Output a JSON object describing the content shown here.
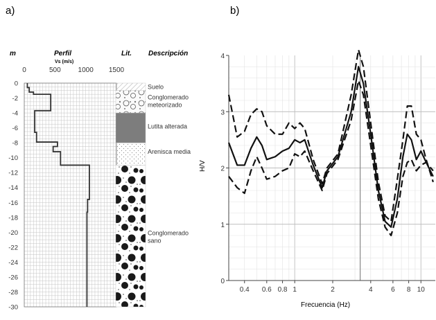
{
  "panels": {
    "a": "a)",
    "b": "b)"
  },
  "headers": {
    "depth": "m",
    "profile": "Perfil",
    "vs": "Vs (m/s)",
    "lith": "Lit.",
    "desc": "Descripción"
  },
  "descriptions": [
    {
      "lines": [
        "Suelo"
      ],
      "depth": 0.5
    },
    {
      "lines": [
        "Conglomerado",
        "meteorizado"
      ],
      "depth": 2.4
    },
    {
      "lines": [
        "Lutita alterada"
      ],
      "depth": 5.8
    },
    {
      "lines": [
        "Arenisca media"
      ],
      "depth": 9.2
    },
    {
      "lines": [
        "Conglomerado",
        "sano"
      ],
      "depth": 20.6
    }
  ],
  "lithology": [
    {
      "top": 0,
      "bottom": 1,
      "pattern": "hatch"
    },
    {
      "top": 1,
      "bottom": 4,
      "pattern": "gravel"
    },
    {
      "top": 4,
      "bottom": 8,
      "pattern": "gray"
    },
    {
      "top": 8,
      "bottom": 11,
      "pattern": "dots"
    },
    {
      "top": 11,
      "bottom": 30,
      "pattern": "conglomerate"
    }
  ],
  "chart_data": [
    {
      "type": "line",
      "xlabel": "Vs (m/s)",
      "ylabel": "m",
      "xlim": [
        0,
        1500
      ],
      "ylim": [
        0,
        -30
      ],
      "xticks": [
        0,
        500,
        1000,
        1500
      ],
      "yticks": [
        0,
        -2,
        -4,
        -6,
        -8,
        -10,
        -12,
        -14,
        -16,
        -18,
        -20,
        -22,
        -24,
        -26,
        -28,
        -30
      ],
      "grid": true,
      "series": [
        {
          "points": [
            [
              50,
              0
            ],
            [
              50,
              -0.6
            ],
            [
              80,
              -0.6
            ],
            [
              80,
              -1.2
            ],
            [
              150,
              -1.2
            ],
            [
              150,
              -1.5
            ],
            [
              430,
              -1.5
            ],
            [
              430,
              -3.7
            ],
            [
              170,
              -3.7
            ],
            [
              170,
              -6.6
            ],
            [
              200,
              -6.6
            ],
            [
              200,
              -7.9
            ],
            [
              540,
              -7.9
            ],
            [
              540,
              -8.5
            ],
            [
              470,
              -8.5
            ],
            [
              470,
              -9.2
            ],
            [
              590,
              -9.2
            ],
            [
              590,
              -11
            ],
            [
              1060,
              -11
            ],
            [
              1060,
              -15.6
            ],
            [
              1030,
              -15.6
            ],
            [
              1030,
              -17.3
            ],
            [
              1020,
              -17.3
            ],
            [
              1020,
              -30
            ]
          ]
        }
      ]
    },
    {
      "type": "line",
      "xlabel": "Frecuencia (Hz)",
      "ylabel": "H/V",
      "xscale": "log",
      "xlim": [
        0.3,
        13
      ],
      "ylim": [
        0,
        4
      ],
      "xtick_labels": [
        {
          "v": 0.4,
          "label": "0.4"
        },
        {
          "v": 0.6,
          "label": "0.6"
        },
        {
          "v": 0.8,
          "label": "0.8"
        },
        {
          "v": 1,
          "label": "1"
        },
        {
          "v": 2,
          "label": "2"
        },
        {
          "v": 4,
          "label": "4"
        },
        {
          "v": 6,
          "label": "6"
        },
        {
          "v": 8,
          "label": "8"
        },
        {
          "v": 10,
          "label": "10"
        }
      ],
      "yticks": [
        0,
        1,
        2,
        3,
        4
      ],
      "grid": true,
      "vline": 3.3,
      "series": [
        {
          "style": "solid",
          "points": [
            [
              0.3,
              2.45
            ],
            [
              0.35,
              2.05
            ],
            [
              0.4,
              2.05
            ],
            [
              0.45,
              2.35
            ],
            [
              0.5,
              2.55
            ],
            [
              0.55,
              2.4
            ],
            [
              0.6,
              2.15
            ],
            [
              0.7,
              2.2
            ],
            [
              0.8,
              2.3
            ],
            [
              0.9,
              2.35
            ],
            [
              1.0,
              2.5
            ],
            [
              1.1,
              2.45
            ],
            [
              1.2,
              2.5
            ],
            [
              1.4,
              2.05
            ],
            [
              1.65,
              1.65
            ],
            [
              1.8,
              1.95
            ],
            [
              2.2,
              2.2
            ],
            [
              2.8,
              3.0
            ],
            [
              3.2,
              3.8
            ],
            [
              3.5,
              3.5
            ],
            [
              4.0,
              2.6
            ],
            [
              4.6,
              1.6
            ],
            [
              5.2,
              1.05
            ],
            [
              5.8,
              0.95
            ],
            [
              6.5,
              1.45
            ],
            [
              7.2,
              2.2
            ],
            [
              7.8,
              2.6
            ],
            [
              8.4,
              2.5
            ],
            [
              9.2,
              2.15
            ],
            [
              10,
              2.3
            ],
            [
              11,
              2.1
            ],
            [
              12.5,
              1.85
            ]
          ]
        },
        {
          "style": "dashed",
          "points": [
            [
              0.3,
              3.3
            ],
            [
              0.35,
              2.55
            ],
            [
              0.4,
              2.65
            ],
            [
              0.45,
              2.95
            ],
            [
              0.5,
              3.05
            ],
            [
              0.55,
              3.0
            ],
            [
              0.6,
              2.75
            ],
            [
              0.7,
              2.6
            ],
            [
              0.8,
              2.6
            ],
            [
              0.9,
              2.8
            ],
            [
              1.0,
              2.7
            ],
            [
              1.1,
              2.8
            ],
            [
              1.2,
              2.7
            ],
            [
              1.4,
              2.15
            ],
            [
              1.65,
              1.72
            ],
            [
              1.8,
              2.0
            ],
            [
              2.2,
              2.25
            ],
            [
              2.8,
              3.3
            ],
            [
              3.2,
              4.1
            ],
            [
              3.5,
              3.8
            ],
            [
              4.0,
              2.8
            ],
            [
              4.6,
              1.75
            ],
            [
              5.2,
              1.15
            ],
            [
              5.8,
              1.05
            ],
            [
              6.5,
              1.8
            ],
            [
              7.2,
              2.5
            ],
            [
              7.8,
              3.1
            ],
            [
              8.4,
              3.1
            ],
            [
              9.2,
              2.6
            ],
            [
              10,
              2.5
            ],
            [
              11,
              2.15
            ],
            [
              12.5,
              1.75
            ]
          ]
        },
        {
          "style": "dashed",
          "points": [
            [
              0.3,
              1.85
            ],
            [
              0.35,
              1.65
            ],
            [
              0.4,
              1.55
            ],
            [
              0.45,
              1.95
            ],
            [
              0.5,
              2.2
            ],
            [
              0.55,
              2.0
            ],
            [
              0.6,
              1.8
            ],
            [
              0.7,
              1.85
            ],
            [
              0.8,
              1.95
            ],
            [
              0.9,
              2.0
            ],
            [
              1.0,
              2.25
            ],
            [
              1.1,
              2.2
            ],
            [
              1.2,
              2.3
            ],
            [
              1.4,
              1.95
            ],
            [
              1.65,
              1.6
            ],
            [
              1.8,
              1.9
            ],
            [
              2.2,
              2.15
            ],
            [
              2.8,
              2.85
            ],
            [
              3.2,
              3.55
            ],
            [
              3.5,
              3.3
            ],
            [
              4.0,
              2.4
            ],
            [
              4.6,
              1.45
            ],
            [
              5.2,
              0.95
            ],
            [
              5.8,
              0.8
            ],
            [
              6.5,
              1.2
            ],
            [
              7.2,
              1.85
            ],
            [
              7.8,
              2.1
            ],
            [
              8.4,
              2.15
            ],
            [
              9.2,
              1.95
            ],
            [
              10,
              2.05
            ],
            [
              11,
              2.1
            ],
            [
              12.5,
              1.95
            ]
          ]
        }
      ]
    }
  ]
}
